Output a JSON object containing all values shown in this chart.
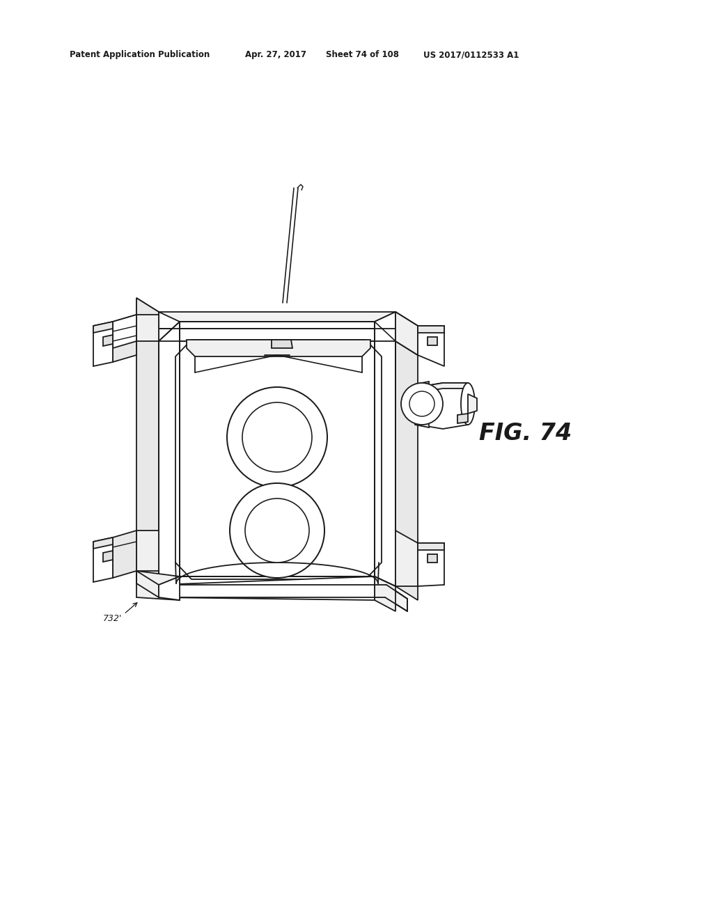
{
  "background_color": "#ffffff",
  "header_text": "Patent Application Publication",
  "header_date": "Apr. 27, 2017",
  "header_sheet": "Sheet 74 of 108",
  "header_patent": "US 2017/0112533 A1",
  "fig_label": "FIG. 74",
  "ref_label": "732'",
  "line_color": "#1a1a1a",
  "line_width": 1.3
}
